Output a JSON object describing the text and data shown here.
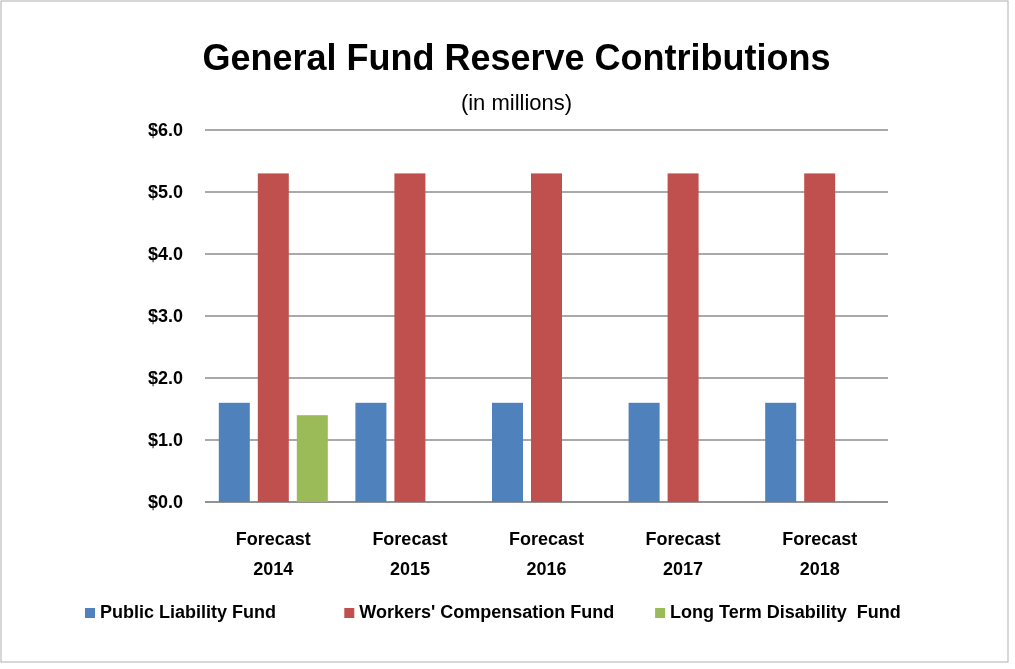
{
  "chart_data": {
    "type": "bar",
    "title": "General Fund Reserve Contributions",
    "subtitle": "(in millions)",
    "categories": [
      "Forecast 2014",
      "Forecast 2015",
      "Forecast 2016",
      "Forecast 2017",
      "Forecast 2018"
    ],
    "series": [
      {
        "name": "Public Liability Fund",
        "color": "#4f81bd",
        "values": [
          1.6,
          1.6,
          1.6,
          1.6,
          1.6
        ]
      },
      {
        "name": "Workers' Compensation Fund",
        "color": "#c0504d",
        "values": [
          5.3,
          5.3,
          5.3,
          5.3,
          5.3
        ]
      },
      {
        "name": "Long Term Disability  Fund",
        "color": "#9bbb59",
        "values": [
          1.4,
          null,
          null,
          null,
          null
        ]
      }
    ],
    "ylim": [
      0,
      6
    ],
    "yticks": [
      {
        "value": 0,
        "label": "$0.0"
      },
      {
        "value": 1,
        "label": "$1.0"
      },
      {
        "value": 2,
        "label": "$2.0"
      },
      {
        "value": 3,
        "label": "$3.0"
      },
      {
        "value": 4,
        "label": "$4.0"
      },
      {
        "value": 5,
        "label": "$5.0"
      },
      {
        "value": 6,
        "label": "$6.0"
      }
    ],
    "grid": "y",
    "legend": "bottom"
  }
}
